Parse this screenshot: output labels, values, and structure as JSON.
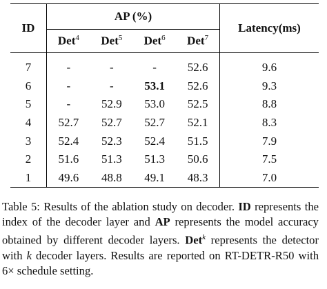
{
  "table": {
    "header": {
      "id": "ID",
      "group": "AP (%)",
      "latency": "Latency(ms)",
      "subcolumns": [
        {
          "base": "Det",
          "sup": "4"
        },
        {
          "base": "Det",
          "sup": "5"
        },
        {
          "base": "Det",
          "sup": "6"
        },
        {
          "base": "Det",
          "sup": "7"
        }
      ]
    },
    "rows": [
      [
        "7",
        "-",
        "-",
        "-",
        "52.6",
        "9.6"
      ],
      [
        "6",
        "-",
        "-",
        {
          "text": "53.1",
          "bold": true
        },
        "52.6",
        "9.3"
      ],
      [
        "5",
        "-",
        "52.9",
        "53.0",
        "52.5",
        "8.8"
      ],
      [
        "4",
        "52.7",
        "52.7",
        "52.7",
        "52.1",
        "8.3"
      ],
      [
        "3",
        "52.4",
        "52.3",
        "52.4",
        "51.5",
        "7.9"
      ],
      [
        "2",
        "51.6",
        "51.3",
        "51.3",
        "50.6",
        "7.5"
      ],
      [
        "1",
        "49.6",
        "48.8",
        "49.1",
        "48.3",
        "7.0"
      ]
    ]
  },
  "caption": {
    "runs": [
      {
        "text": "Table 5: Results of the ablation study on decoder. "
      },
      {
        "text": "ID",
        "bold": true
      },
      {
        "text": " represents the index of the decoder layer and "
      },
      {
        "text": "AP",
        "bold": true
      },
      {
        "text": " represents the model accuracy obtained by different decoder layers. "
      },
      {
        "text": "Det",
        "bold": true
      },
      {
        "text": "k",
        "italic": true,
        "sup": true
      },
      {
        "text": " represents the detector with "
      },
      {
        "text": "k",
        "italic": true
      },
      {
        "text": " decoder layers. Results are reported on RT-DETR-R50 with 6× schedule setting."
      }
    ]
  }
}
